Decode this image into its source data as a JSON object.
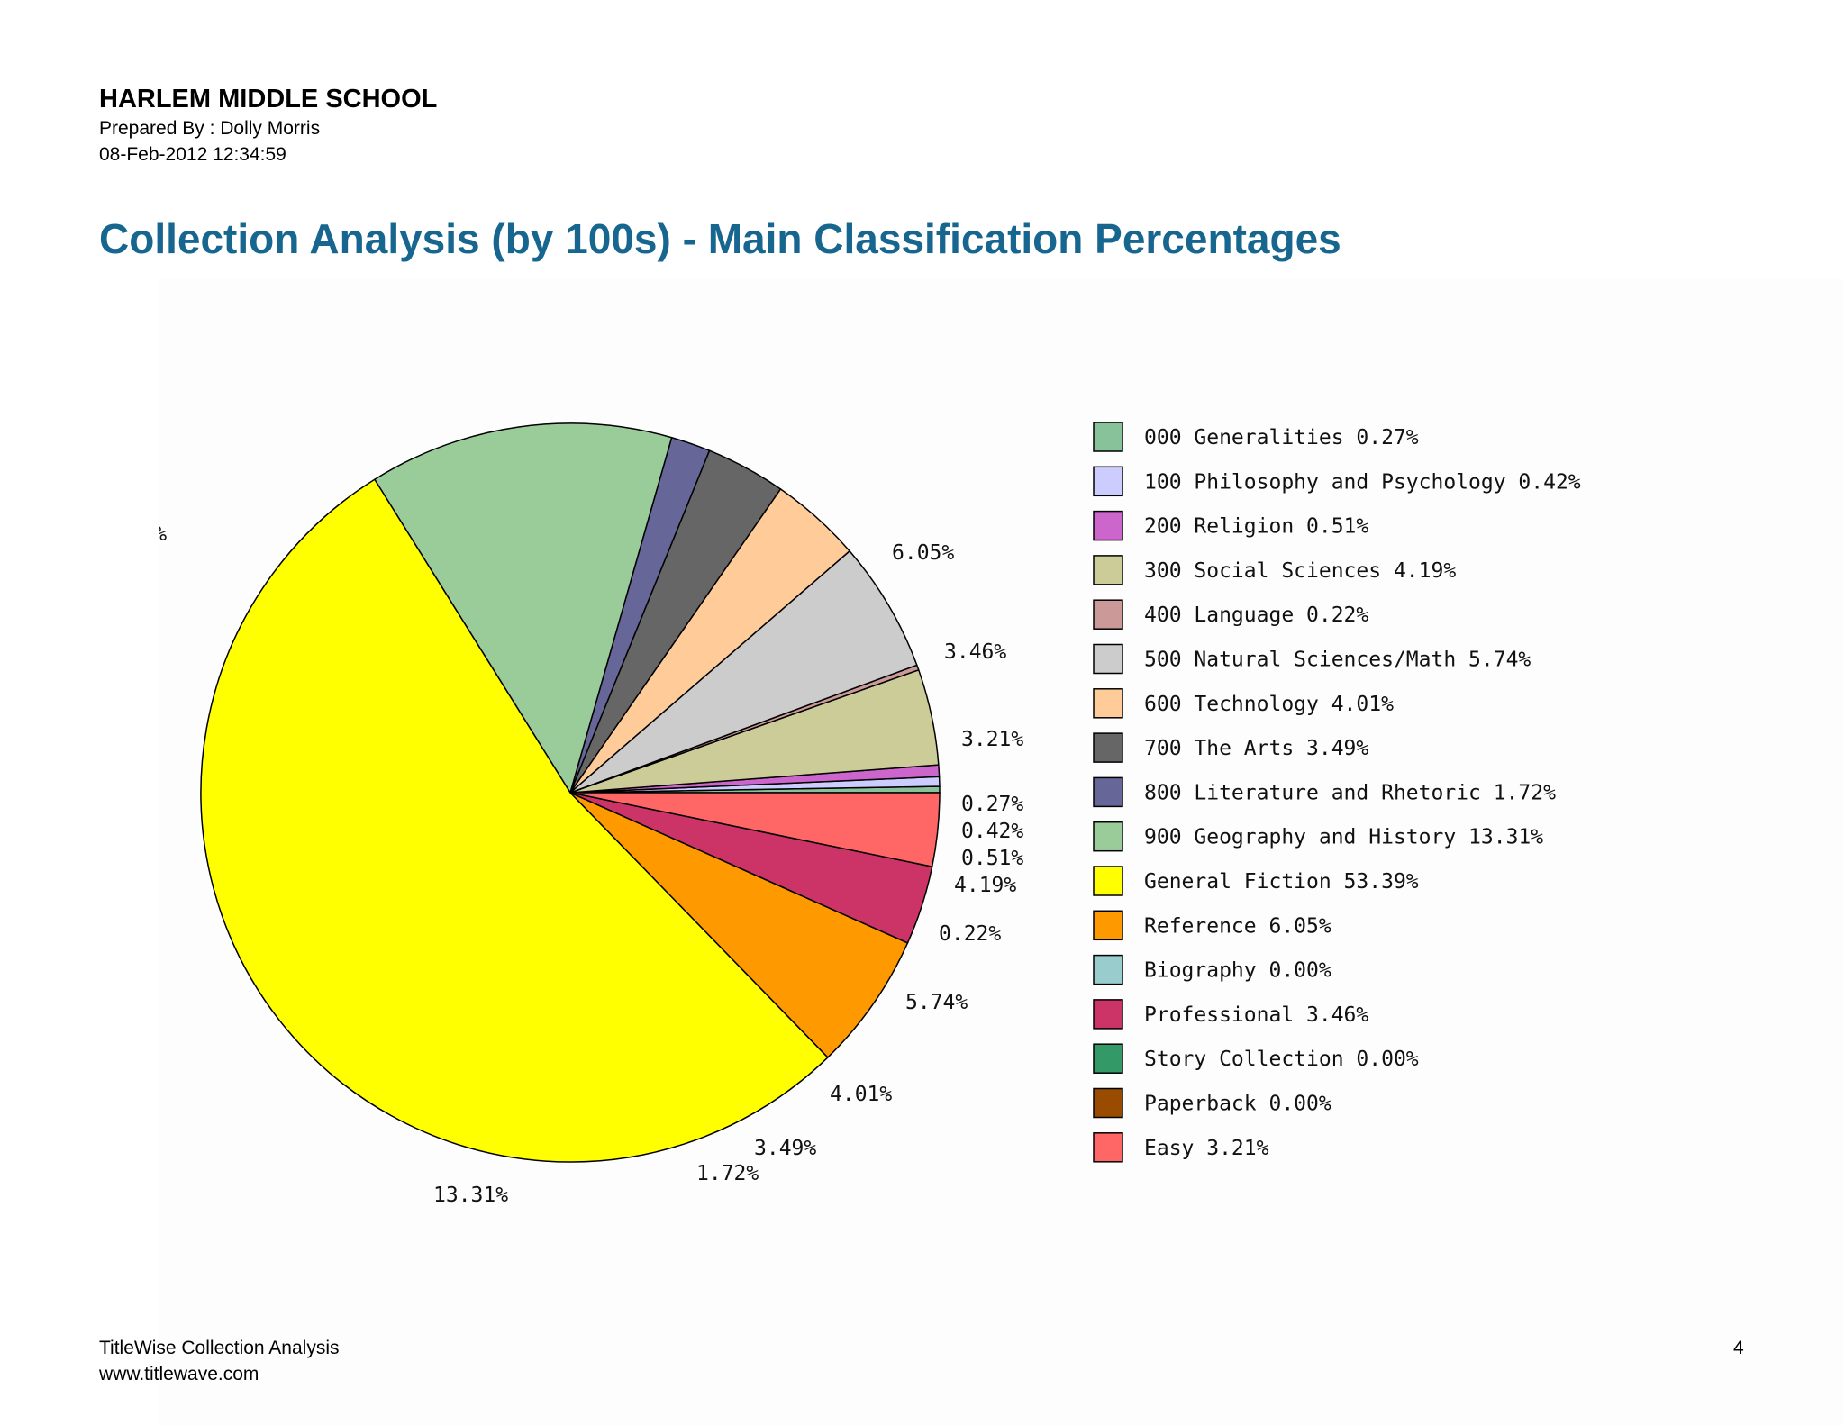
{
  "header": {
    "school": "HARLEM MIDDLE SCHOOL",
    "prepared_by": "Prepared By : Dolly Morris",
    "date": "08-Feb-2012 12:34:59"
  },
  "title": "Collection Analysis (by 100s) - Main Classification Percentages",
  "footer": {
    "line1": "TitleWise Collection Analysis",
    "line2": "www.titlewave.com",
    "page": "4"
  },
  "chart_data": {
    "type": "pie",
    "title": "",
    "legend_position": "right",
    "slices": [
      {
        "label": "000 Generalities",
        "value": 0.27,
        "display": "0.27%",
        "legend": "000 Generalities 0.27%",
        "color": "#88c29a"
      },
      {
        "label": "100 Philosophy and Psychology",
        "value": 0.42,
        "display": "0.42%",
        "legend": "100 Philosophy and Psychology 0.42%",
        "color": "#ccccff"
      },
      {
        "label": "200 Religion",
        "value": 0.51,
        "display": "0.51%",
        "legend": "200 Religion 0.51%",
        "color": "#cc66cc"
      },
      {
        "label": "300 Social Sciences",
        "value": 4.19,
        "display": "4.19%",
        "legend": "300 Social Sciences 4.19%",
        "color": "#cccc99"
      },
      {
        "label": "400 Language",
        "value": 0.22,
        "display": "0.22%",
        "legend": "400 Language 0.22%",
        "color": "#cc9999"
      },
      {
        "label": "500 Natural Sciences/Math",
        "value": 5.74,
        "display": "5.74%",
        "legend": "500 Natural Sciences/Math 5.74%",
        "color": "#cccccc"
      },
      {
        "label": "600 Technology",
        "value": 4.01,
        "display": "4.01%",
        "legend": "600 Technology 4.01%",
        "color": "#ffcc99"
      },
      {
        "label": "700 The Arts",
        "value": 3.49,
        "display": "3.49%",
        "legend": "700 The Arts 3.49%",
        "color": "#666666"
      },
      {
        "label": "800 Literature and Rhetoric",
        "value": 1.72,
        "display": "1.72%",
        "legend": "800 Literature and Rhetoric 1.72%",
        "color": "#666699"
      },
      {
        "label": "900 Geography and History",
        "value": 13.31,
        "display": "13.31%",
        "legend": "900 Geography and History 13.31%",
        "color": "#99cc99"
      },
      {
        "label": "General Fiction",
        "value": 53.39,
        "display": "53.39%",
        "legend": "General Fiction 53.39%",
        "color": "#ffff00"
      },
      {
        "label": "Reference",
        "value": 6.05,
        "display": "6.05%",
        "legend": "Reference 6.05%",
        "color": "#ff9900"
      },
      {
        "label": "Biography",
        "value": 0.0,
        "display": "0.00%",
        "legend": "Biography 0.00%",
        "color": "#99cccc"
      },
      {
        "label": "Professional",
        "value": 3.46,
        "display": "3.46%",
        "legend": "Professional 3.46%",
        "color": "#cc3366"
      },
      {
        "label": "Story Collection",
        "value": 0.0,
        "display": "0.00%",
        "legend": "Story Collection 0.00%",
        "color": "#339966"
      },
      {
        "label": "Paperback",
        "value": 0.0,
        "display": "0.00%",
        "legend": "Paperback 0.00%",
        "color": "#994c00"
      },
      {
        "label": "Easy",
        "value": 3.21,
        "display": "3.21%",
        "legend": "Easy 3.21%",
        "color": "#ff6666"
      }
    ]
  }
}
